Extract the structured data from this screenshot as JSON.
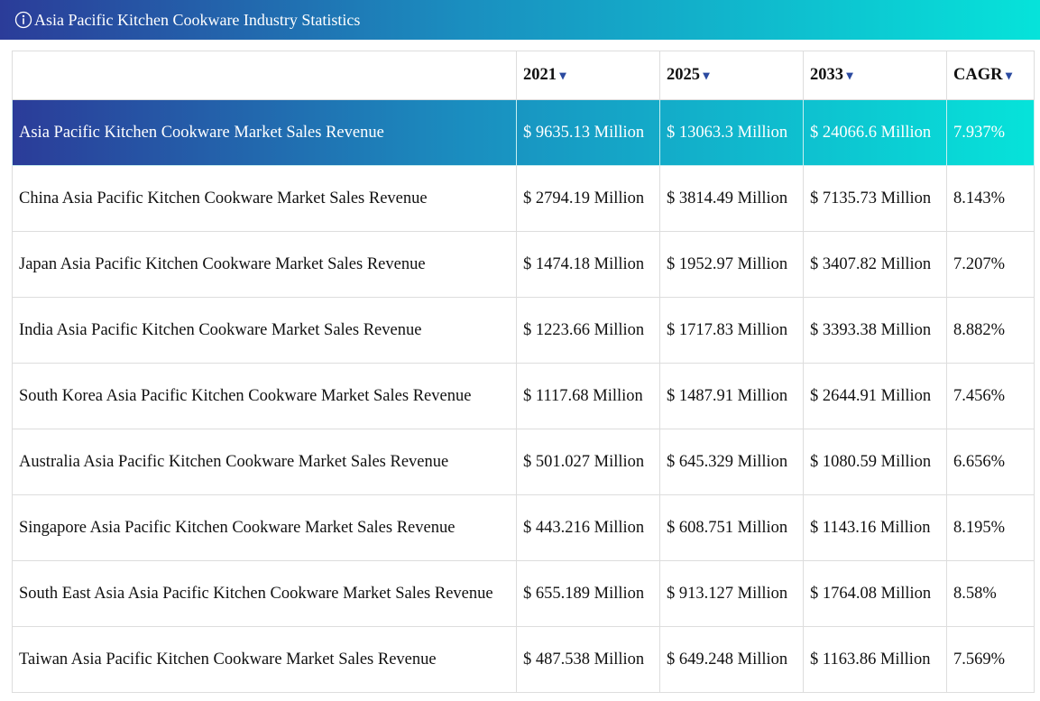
{
  "header": {
    "title": "Asia Pacific Kitchen Cookware Industry Statistics"
  },
  "table": {
    "columns": [
      "2021",
      "2025",
      "2033",
      "CAGR"
    ],
    "rows": [
      [
        "Asia Pacific Kitchen Cookware Market Sales Revenue",
        "$ 9635.13 Million",
        "$ 13063.3 Million",
        "$ 24066.6 Million",
        "7.937%"
      ],
      [
        "China Asia Pacific Kitchen Cookware Market Sales Revenue",
        "$ 2794.19 Million",
        "$ 3814.49 Million",
        "$ 7135.73 Million",
        "8.143%"
      ],
      [
        "Japan Asia Pacific Kitchen Cookware Market Sales Revenue",
        "$ 1474.18 Million",
        "$ 1952.97 Million",
        "$ 3407.82 Million",
        "7.207%"
      ],
      [
        "India Asia Pacific Kitchen Cookware Market Sales Revenue",
        "$ 1223.66 Million",
        "$ 1717.83 Million",
        "$ 3393.38 Million",
        "8.882%"
      ],
      [
        "South Korea Asia Pacific Kitchen Cookware Market Sales Revenue",
        "$ 1117.68 Million",
        "$ 1487.91 Million",
        "$ 2644.91 Million",
        "7.456%"
      ],
      [
        "Australia Asia Pacific Kitchen Cookware Market Sales Revenue",
        "$ 501.027 Million",
        "$ 645.329 Million",
        "$ 1080.59 Million",
        "6.656%"
      ],
      [
        "Singapore Asia Pacific Kitchen Cookware Market Sales Revenue",
        "$ 443.216 Million",
        "$ 608.751 Million",
        "$ 1143.16 Million",
        "8.195%"
      ],
      [
        "South East Asia Asia Pacific Kitchen Cookware Market Sales Revenue",
        "$ 655.189 Million",
        "$ 913.127 Million",
        "$ 1764.08 Million",
        "8.58%"
      ],
      [
        "Taiwan Asia Pacific Kitchen Cookware Market Sales Revenue",
        "$ 487.538 Million",
        "$ 649.248 Million",
        "$ 1163.86 Million",
        "7.569%"
      ]
    ]
  }
}
